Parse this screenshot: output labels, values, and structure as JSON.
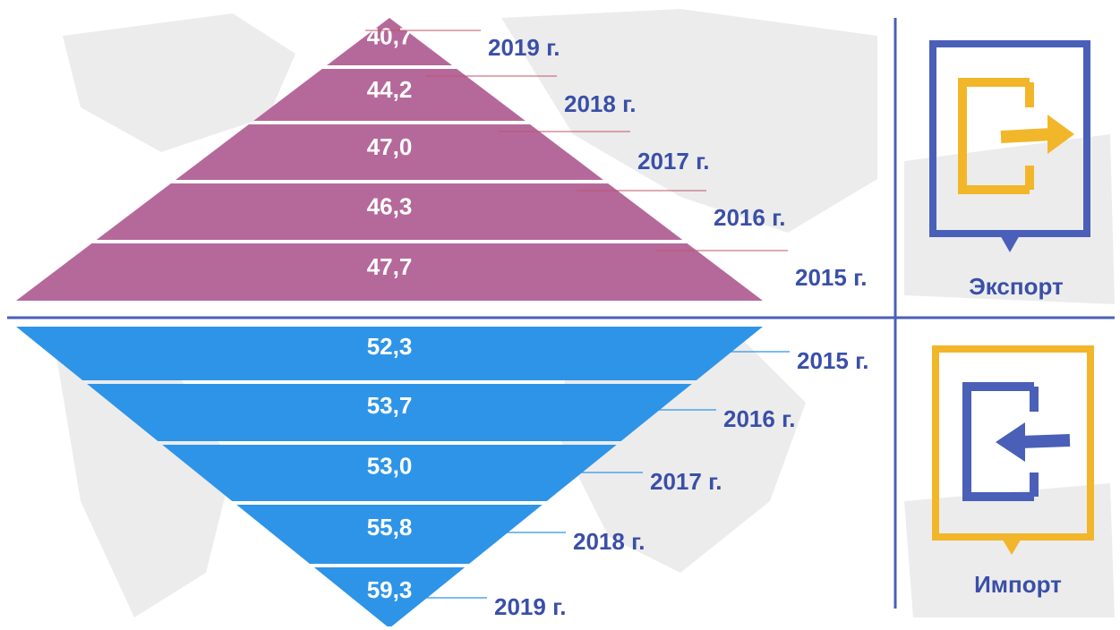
{
  "export": {
    "label": "Экспорт",
    "levels": [
      {
        "value": "40,7",
        "year": "2019 г."
      },
      {
        "value": "44,2",
        "year": "2018 г."
      },
      {
        "value": "47,0",
        "year": "2017 г."
      },
      {
        "value": "46,3",
        "year": "2016 г."
      },
      {
        "value": "47,7",
        "year": "2015 г."
      }
    ]
  },
  "import": {
    "label": "Импорт",
    "levels": [
      {
        "value": "52,3",
        "year": "2015 г."
      },
      {
        "value": "53,7",
        "year": "2016 г."
      },
      {
        "value": "53,0",
        "year": "2017 г."
      },
      {
        "value": "55,8",
        "year": "2018 г."
      },
      {
        "value": "59,3",
        "year": "2019 г."
      }
    ]
  }
}
